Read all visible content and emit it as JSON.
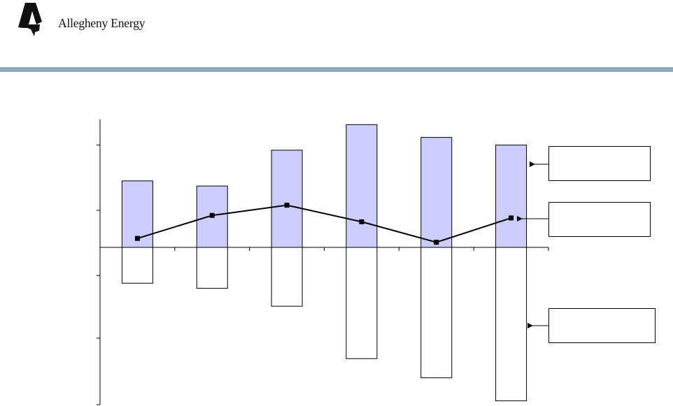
{
  "header": {
    "logo_text": "Allegheny Energy",
    "logo_icon": "allegheny-a-mark-icon",
    "rule_color": "#8ea8bf"
  },
  "chart_data": {
    "type": "bar",
    "categories": [
      "",
      "",
      "",
      "",
      "",
      ""
    ],
    "series": [
      {
        "type": "bar",
        "color": "#ccccff",
        "values": [
          2.6,
          2.4,
          3.8,
          4.8,
          4.3,
          4.0
        ]
      },
      {
        "type": "bar",
        "color": "#ffffff",
        "values": [
          -2.8,
          -3.2,
          -4.6,
          -8.7,
          -10.2,
          -12.0
        ]
      },
      {
        "type": "line",
        "color": "#000000",
        "marker": "square",
        "values": [
          0.35,
          1.25,
          1.65,
          1.0,
          0.2,
          1.15
        ]
      }
    ],
    "title": "",
    "xlabel": "",
    "ylabel": "",
    "ylim": [
      -12.3,
      5.0
    ],
    "y_ticks_positive": [
      0,
      1.45,
      4.0
    ],
    "y_ticks_negative": [
      0,
      -2.2,
      -7.1,
      -12.3
    ],
    "grid": false,
    "callouts": [
      {
        "text": "",
        "target_series": 0
      },
      {
        "text": "",
        "target_series": 2
      },
      {
        "text": "",
        "target_series": 1
      }
    ]
  }
}
